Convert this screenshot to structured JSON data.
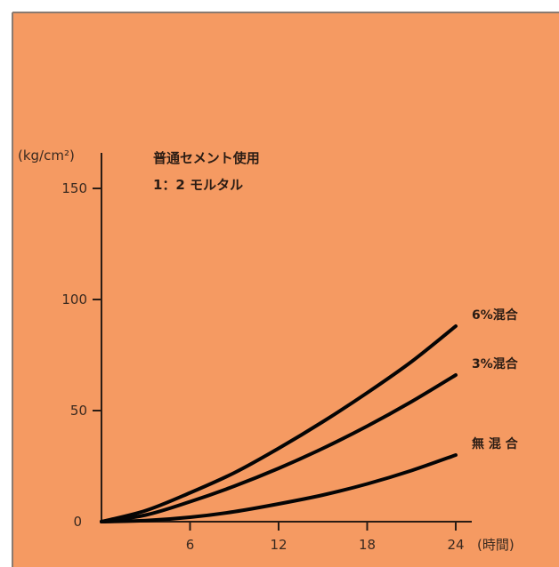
{
  "chart_data": {
    "type": "line",
    "title": "",
    "annotations": [
      "普通セメント使用",
      "1：2 モルタル"
    ],
    "ylabel": "(kg/cm²)",
    "xlabel": "(時間)",
    "xlim": [
      0,
      24
    ],
    "ylim": [
      0,
      150
    ],
    "x_ticks": [
      6,
      12,
      18,
      24
    ],
    "y_ticks": [
      0,
      50,
      100,
      150
    ],
    "grid": false,
    "series": [
      {
        "name": "6%混合",
        "x": [
          0,
          3,
          6,
          9,
          12,
          15,
          18,
          21,
          24
        ],
        "y": [
          0,
          5,
          13,
          22,
          33,
          45,
          58,
          72,
          88
        ]
      },
      {
        "name": "3%混合",
        "x": [
          0,
          3,
          6,
          9,
          12,
          15,
          18,
          21,
          24
        ],
        "y": [
          0,
          3,
          9,
          16,
          24,
          33,
          43,
          54,
          66
        ]
      },
      {
        "name": "無 混 合",
        "x": [
          0,
          3,
          6,
          9,
          12,
          15,
          18,
          21,
          24
        ],
        "y": [
          0,
          0.5,
          2,
          4.5,
          8,
          12,
          17,
          23,
          30
        ]
      }
    ]
  },
  "colors": {
    "background": "#f59a62",
    "border": "#8a7a70",
    "curve": "#050505",
    "axis": "#2a1c14"
  }
}
